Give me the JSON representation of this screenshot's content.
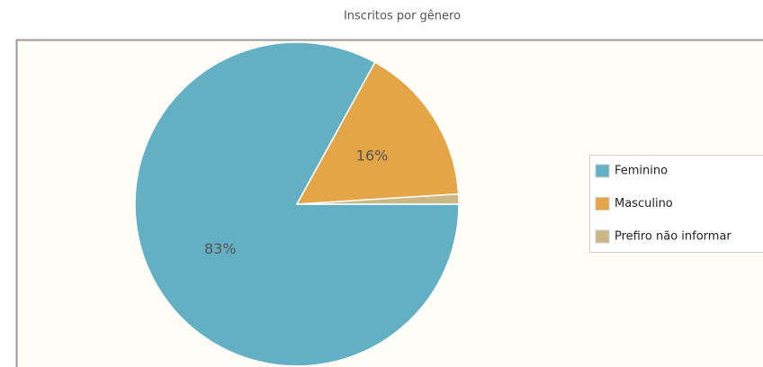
{
  "chart_data": {
    "type": "pie",
    "title": "Inscritos por gênero",
    "categories": [
      "Feminino",
      "Masculino",
      "Prefiro não informar"
    ],
    "values": [
      83,
      16,
      1
    ],
    "value_labels": [
      "83%",
      "16%",
      null
    ],
    "colors": [
      "#63b0c5",
      "#e4a546",
      "#cbb786"
    ],
    "legend": "right"
  }
}
